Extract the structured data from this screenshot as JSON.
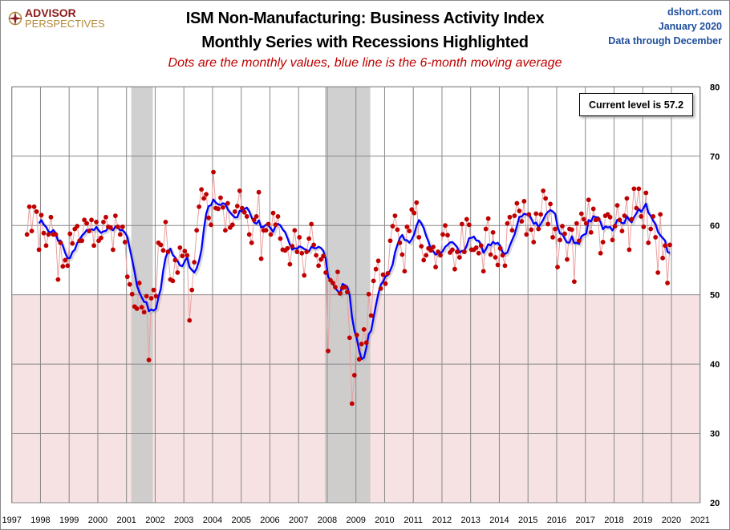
{
  "header": {
    "logo_top": "ADVISOR",
    "logo_bottom": "PERSPECTIVES",
    "source": "dshort.com",
    "date": "January 2020",
    "data_through": "Data through December"
  },
  "chart_data": {
    "type": "scatter",
    "title": "ISM Non-Manufacturing: Business Activity Index",
    "subtitle": "Monthly Series with Recessions Highlighted",
    "note": "Dots are the monthly values, blue line is the 6-month moving average",
    "annotation": "Current level is 57.2",
    "start": "1997-07",
    "end": "2019-12",
    "frequency": "monthly",
    "moving_average_months": 6,
    "xlim": [
      1997,
      2021
    ],
    "ylim": [
      20,
      80
    ],
    "x_ticks": [
      "1997",
      "1998",
      "1999",
      "2000",
      "2001",
      "2002",
      "2003",
      "2004",
      "2005",
      "2006",
      "2007",
      "2008",
      "2009",
      "2010",
      "2011",
      "2012",
      "2013",
      "2014",
      "2015",
      "2016",
      "2017",
      "2018",
      "2019",
      "2020",
      "2021"
    ],
    "y_ticks": [
      80,
      70,
      60,
      50,
      40,
      30,
      20
    ],
    "y_axis_side": "right",
    "grid": true,
    "shaded_below": 50,
    "recessions": [
      [
        "2001-03",
        "2001-11"
      ],
      [
        "2007-12",
        "2009-06"
      ]
    ],
    "colors": {
      "dots": "#c00000",
      "dot_line": "#e8a0a0",
      "ma_line": "#0000ff",
      "below_50": "#f6e2e2",
      "recession": "#c8c8c8",
      "grid": "#888888"
    },
    "values": [
      58.7,
      62.7,
      59.2,
      62.7,
      62.0,
      56.5,
      61.5,
      58.9,
      57.1,
      58.7,
      61.2,
      58.7,
      58.7,
      52.2,
      57.5,
      54.1,
      55.0,
      54.2,
      58.8,
      57.4,
      59.5,
      59.9,
      57.8,
      57.8,
      60.8,
      60.3,
      59.2,
      60.8,
      57.1,
      60.5,
      57.8,
      58.2,
      60.5,
      61.2,
      59.8,
      59.7,
      56.5,
      61.4,
      59.8,
      58.7,
      59.8,
      57.6,
      52.6,
      51.5,
      50.1,
      48.3,
      48.0,
      51.7,
      48.2,
      47.5,
      49.8,
      40.6,
      49.5,
      50.7,
      49.8,
      57.5,
      57.2,
      56.4,
      60.5,
      56.2,
      52.2,
      52.0,
      55.0,
      53.2,
      56.8,
      55.6,
      56.3,
      55.7,
      46.3,
      50.7,
      54.7,
      59.3,
      62.7,
      65.2,
      63.9,
      64.5,
      61.1,
      60.1,
      67.7,
      62.5,
      62.4,
      64.0,
      62.6,
      59.3,
      63.2,
      59.7,
      60.1,
      62.0,
      62.8,
      65.0,
      62.5,
      61.9,
      61.3,
      58.7,
      57.5,
      60.8,
      61.3,
      64.8,
      55.2,
      59.3,
      59.3,
      60.2,
      58.7,
      61.8,
      60.1,
      61.3,
      58.1,
      56.5,
      56.4,
      56.7,
      54.4,
      57.0,
      59.3,
      56.2,
      58.3,
      56.0,
      52.8,
      56.2,
      58.1,
      60.2,
      57.2,
      55.7,
      54.2,
      55.1,
      55.6,
      53.2,
      41.9,
      52.1,
      51.7,
      51.1,
      53.3,
      50.2,
      51.0,
      51.1,
      50.4,
      43.8,
      34.3,
      38.4,
      44.2,
      40.7,
      42.9,
      45.0,
      43.1,
      50.1,
      47.0,
      52.0,
      53.7,
      54.9,
      50.9,
      52.9,
      51.6,
      53.1,
      57.8,
      59.9,
      61.4,
      59.4,
      57.5,
      55.8,
      53.4,
      59.8,
      59.2,
      62.3,
      61.8,
      63.3,
      58.3,
      57.0,
      55.0,
      55.7,
      56.7,
      56.4,
      56.9,
      54.0,
      56.2,
      55.7,
      58.7,
      60.0,
      58.6,
      56.1,
      56.5,
      53.7,
      56.2,
      55.4,
      60.2,
      56.2,
      60.9,
      60.1,
      56.5,
      56.5,
      56.8,
      56.0,
      57.1,
      53.4,
      59.5,
      61.0,
      55.8,
      59.0,
      55.4,
      54.3,
      56.7,
      55.7,
      54.2,
      60.3,
      61.2,
      59.3,
      61.4,
      63.2,
      62.1,
      60.6,
      63.5,
      58.7,
      61.6,
      59.4,
      57.6,
      61.7,
      59.5,
      61.6,
      65.0,
      63.9,
      60.2,
      63.1,
      58.3,
      59.5,
      54.0,
      57.9,
      59.9,
      58.8,
      55.1,
      59.5,
      59.4,
      51.9,
      60.3,
      57.8,
      61.7,
      60.9,
      60.3,
      63.7,
      59.0,
      62.4,
      60.8,
      60.9,
      56.0,
      57.6,
      61.4,
      61.6,
      61.2,
      57.9,
      59.9,
      62.9,
      60.8,
      59.2,
      61.4,
      63.9,
      56.5,
      60.9,
      65.3,
      62.5,
      65.3,
      61.3,
      59.8,
      64.7,
      57.5,
      59.5,
      61.3,
      58.3,
      53.2,
      61.6,
      55.3,
      57.1,
      51.7,
      57.2
    ]
  }
}
